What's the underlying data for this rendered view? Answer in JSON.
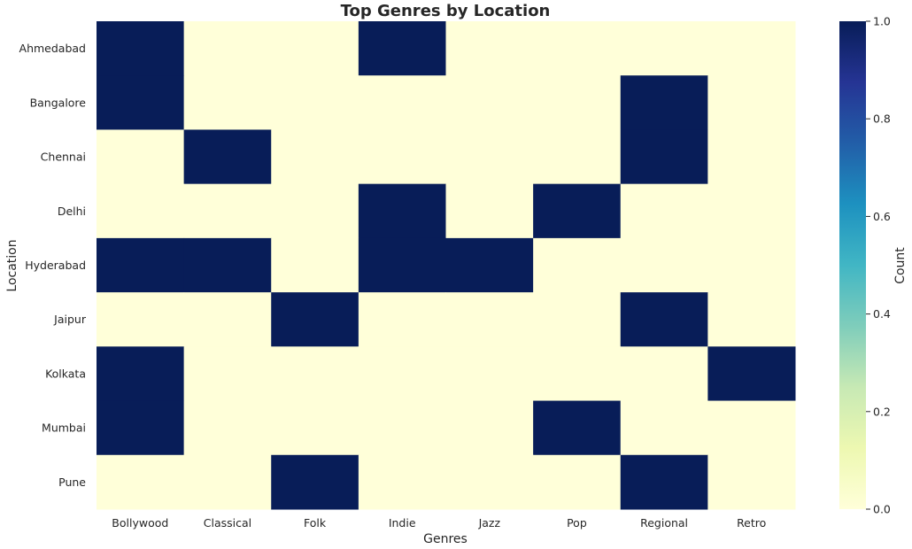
{
  "chart_data": {
    "type": "heatmap",
    "title": "Top Genres by Location",
    "xlabel": "Genres",
    "ylabel": "Location",
    "colorbar_label": "Count",
    "x_categories": [
      "Bollywood",
      "Classical",
      "Folk",
      "Indie",
      "Jazz",
      "Pop",
      "Regional",
      "Retro"
    ],
    "y_categories": [
      "Ahmedabad",
      "Bangalore",
      "Chennai",
      "Delhi",
      "Hyderabad",
      "Jaipur",
      "Kolkata",
      "Mumbai",
      "Pune"
    ],
    "values": [
      [
        1,
        0,
        0,
        1,
        0,
        0,
        0,
        0
      ],
      [
        1,
        0,
        0,
        0,
        0,
        0,
        1,
        0
      ],
      [
        0,
        1,
        0,
        0,
        0,
        0,
        1,
        0
      ],
      [
        0,
        0,
        0,
        1,
        0,
        1,
        0,
        0
      ],
      [
        1,
        1,
        0,
        1,
        1,
        0,
        0,
        0
      ],
      [
        0,
        0,
        1,
        0,
        0,
        0,
        1,
        0
      ],
      [
        1,
        0,
        0,
        0,
        0,
        0,
        0,
        1
      ],
      [
        1,
        0,
        0,
        0,
        0,
        1,
        0,
        0
      ],
      [
        0,
        0,
        1,
        0,
        0,
        0,
        1,
        0
      ]
    ],
    "colorbar_range": [
      0.0,
      1.0
    ],
    "colorbar_ticks": [
      "0.0",
      "0.2",
      "0.4",
      "0.6",
      "0.8",
      "1.0"
    ],
    "colormap": "YlGnBu",
    "colors": {
      "low": "#ffffd9",
      "high": "#081d58",
      "gradient_stops": [
        "#ffffd9",
        "#edf8b1",
        "#c7e9b4",
        "#7fcdbb",
        "#41b6c4",
        "#1d91c0",
        "#225ea8",
        "#253494",
        "#081d58"
      ]
    }
  }
}
